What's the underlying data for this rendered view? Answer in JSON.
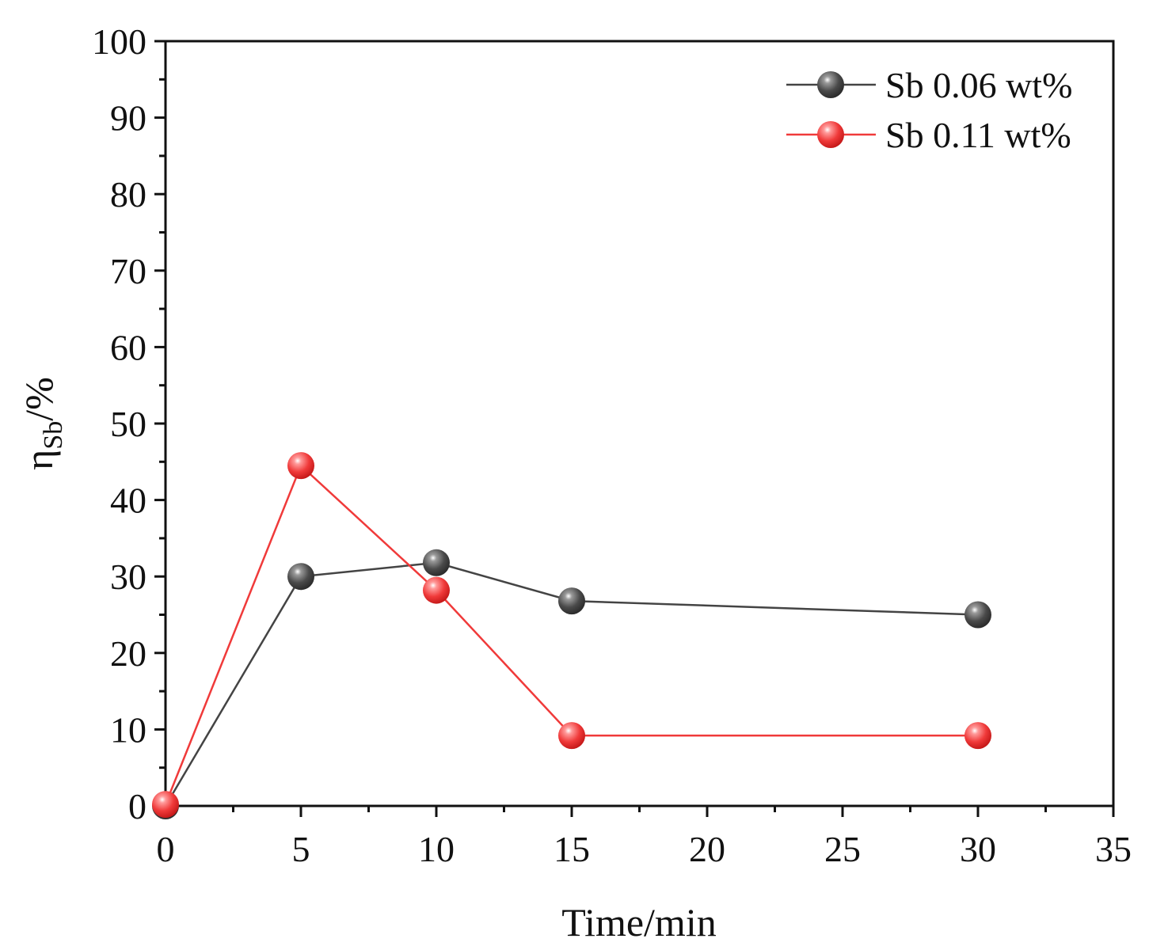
{
  "chart_data": {
    "type": "line",
    "title": "",
    "xlabel": "Time/min",
    "ylabel_main": "η",
    "ylabel_sub": "Sb",
    "ylabel_tail": "/%",
    "xlim": [
      0,
      35
    ],
    "ylim": [
      0,
      100
    ],
    "x_ticks": [
      0,
      5,
      10,
      15,
      20,
      25,
      30,
      35
    ],
    "x_tick_labels": [
      "0",
      "5",
      "10",
      "15",
      "20",
      "25",
      "30",
      "35"
    ],
    "y_ticks": [
      0,
      10,
      20,
      30,
      40,
      50,
      60,
      70,
      80,
      90,
      100
    ],
    "y_tick_labels": [
      "0",
      "10",
      "20",
      "30",
      "40",
      "50",
      "60",
      "70",
      "80",
      "90",
      "100"
    ],
    "grid": false,
    "legend_position": "top-right",
    "series": [
      {
        "name": "Sb 0.06 wt%",
        "color": "#4a4a4a",
        "line_color": "#444444",
        "x": [
          0,
          5,
          10,
          15,
          30
        ],
        "values": [
          0,
          30,
          31.8,
          26.8,
          25
        ]
      },
      {
        "name": "Sb 0.11 wt%",
        "color": "#f03a3a",
        "line_color": "#f03a3a",
        "x": [
          0,
          5,
          10,
          15,
          30
        ],
        "values": [
          0.2,
          44.5,
          28.2,
          9.2,
          9.2
        ]
      }
    ]
  }
}
